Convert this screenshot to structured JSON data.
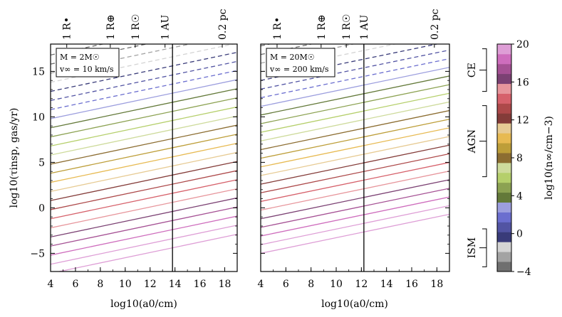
{
  "chart_data": [
    {
      "type": "line",
      "panel": "left",
      "ylabel": "log10(τinsp, gas/yr)",
      "xlabel": "log10(a0/cm)",
      "xlim": [
        4,
        19
      ],
      "ylim": [
        -7,
        18
      ],
      "xticks": [
        4,
        6,
        8,
        10,
        12,
        14,
        16,
        18
      ],
      "yticks": [
        -5,
        0,
        5,
        10,
        15
      ],
      "annotation": [
        "M = 2M☉",
        "v∞ = 10 km/s"
      ],
      "vline_x": 13.8,
      "top_labels": [
        {
          "text": "1 R•",
          "x": 5.3
        },
        {
          "text": "1 R⊕",
          "x": 8.8
        },
        {
          "text": "1 R☉",
          "x": 10.8
        },
        {
          "text": "1 AU",
          "x": 13.2
        },
        {
          "text": "0.2 pc",
          "x": 17.8
        }
      ],
      "slope": 0.286,
      "lines": {
        "n_min": -4,
        "n_max": 20,
        "y_at_x4_for_n20": -7.2,
        "step_per_n": 1.0,
        "dashed_above_y": 10.5
      }
    },
    {
      "type": "line",
      "panel": "right",
      "xlabel": "log10(a0/cm)",
      "xlim": [
        4,
        19
      ],
      "ylim": [
        -7,
        18
      ],
      "xticks": [
        4,
        6,
        8,
        10,
        12,
        14,
        16,
        18
      ],
      "annotation": [
        "M = 20M☉",
        "v∞ = 200 km/s"
      ],
      "vline_x": 12.2,
      "top_labels": [
        {
          "text": "1 R•",
          "x": 5.3
        },
        {
          "text": "1 R⊕",
          "x": 8.8
        },
        {
          "text": "1 R☉",
          "x": 10.8
        },
        {
          "text": "1 AU",
          "x": 12.2
        },
        {
          "text": "0.2 pc",
          "x": 17.8
        }
      ],
      "slope": 0.286,
      "lines": {
        "n_min": -4,
        "n_max": 20,
        "y_at_x4_for_n20": -5.0,
        "step_per_n": 0.95,
        "dashed_above_y": 12.0
      }
    }
  ],
  "colorbar": {
    "label": "log10(n∞/cm−3)",
    "ticks": [
      -4,
      0,
      4,
      8,
      12,
      16,
      20
    ],
    "colors": [
      "#6f6f6f",
      "#a3a3a3",
      "#d4d4d4",
      "#393b79",
      "#5254a3",
      "#6b6ecf",
      "#9c9ede",
      "#637939",
      "#8ca252",
      "#b5cf6b",
      "#cedb9c",
      "#8c6d31",
      "#bd9e39",
      "#e7ba52",
      "#e7cb94",
      "#843c39",
      "#ad494a",
      "#d6616b",
      "#e7969c",
      "#7b4173",
      "#a55194",
      "#ce6dbd",
      "#de9ed6"
    ],
    "regions": [
      {
        "label": "CE",
        "from": 15,
        "to": 19.5
      },
      {
        "label": "AGN",
        "from": 6,
        "to": 13.5
      },
      {
        "label": "ISM",
        "from": -3.5,
        "to": 0.5
      }
    ]
  }
}
